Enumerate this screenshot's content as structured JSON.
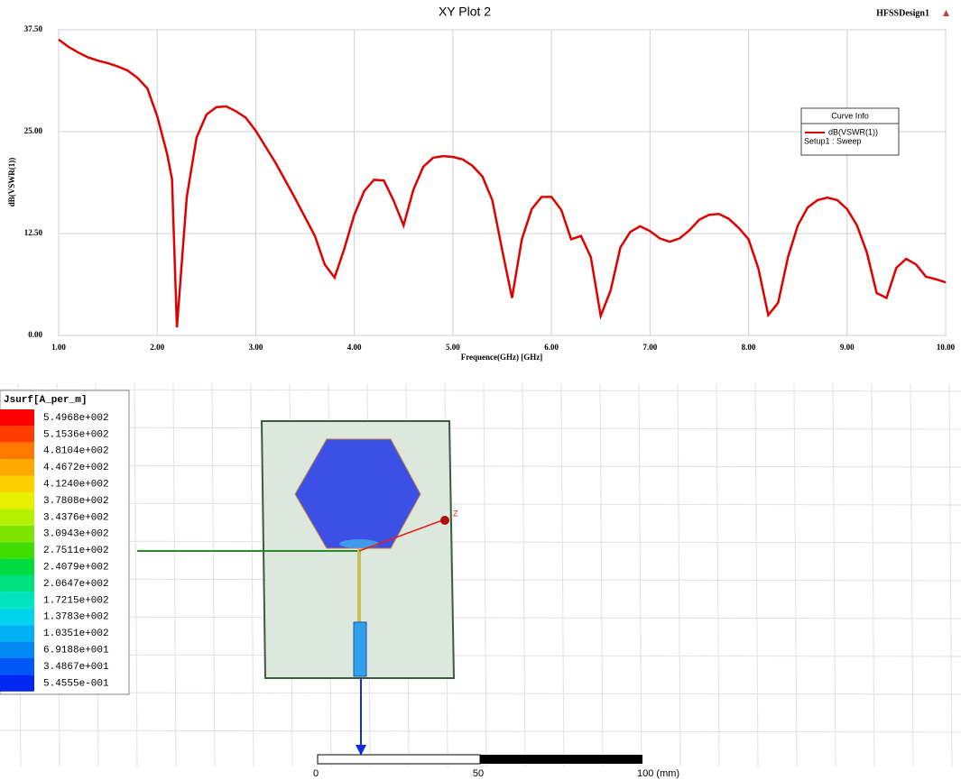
{
  "chart_data": {
    "type": "line",
    "title": "XY Plot 2",
    "design": "HFSSDesign1",
    "x_label": "Frequence(GHz) [GHz]",
    "y_label": "dB(VSWR(1))",
    "xlim": [
      1,
      10
    ],
    "ylim": [
      0,
      37.5
    ],
    "grid": true,
    "xticks": [
      {
        "value": 1,
        "label": "1.00"
      },
      {
        "value": 2,
        "label": "2.00"
      },
      {
        "value": 3,
        "label": "3.00"
      },
      {
        "value": 4,
        "label": "4.00"
      },
      {
        "value": 5,
        "label": "5.00"
      },
      {
        "value": 6,
        "label": "6.00"
      },
      {
        "value": 7,
        "label": "7.00"
      },
      {
        "value": 8,
        "label": "8.00"
      },
      {
        "value": 9,
        "label": "9.00"
      },
      {
        "value": 10,
        "label": "10.00"
      }
    ],
    "yticks": [
      {
        "value": 0,
        "label": "0.00"
      },
      {
        "value": 12.5,
        "label": "12.50"
      },
      {
        "value": 25,
        "label": "25.00"
      },
      {
        "value": 37.5,
        "label": "37.50"
      }
    ],
    "legend_title": "Curve Info",
    "legend_position": "upper right",
    "x": [
      1.0,
      1.1,
      1.2,
      1.3,
      1.4,
      1.5,
      1.6,
      1.7,
      1.8,
      1.9,
      2.0,
      2.1,
      2.15,
      2.2,
      2.3,
      2.4,
      2.5,
      2.6,
      2.7,
      2.8,
      2.9,
      3.0,
      3.2,
      3.4,
      3.6,
      3.7,
      3.8,
      3.9,
      4.0,
      4.1,
      4.2,
      4.3,
      4.4,
      4.5,
      4.6,
      4.7,
      4.8,
      4.9,
      5.0,
      5.1,
      5.2,
      5.3,
      5.4,
      5.5,
      5.6,
      5.7,
      5.8,
      5.9,
      6.0,
      6.1,
      6.2,
      6.3,
      6.4,
      6.5,
      6.6,
      6.7,
      6.8,
      6.9,
      7.0,
      7.1,
      7.2,
      7.3,
      7.4,
      7.5,
      7.6,
      7.7,
      7.8,
      7.9,
      8.0,
      8.1,
      8.2,
      8.3,
      8.4,
      8.5,
      8.6,
      8.7,
      8.8,
      8.9,
      9.0,
      9.1,
      9.2,
      9.3,
      9.4,
      9.5,
      9.6,
      9.7,
      9.8,
      9.9,
      10.0
    ],
    "series": [
      {
        "name": "dB(VSWR(1))",
        "setup": "Setup1 : Sweep",
        "color": "#e00000",
        "values": [
          36.3,
          35.4,
          34.7,
          34.1,
          33.7,
          33.4,
          33.0,
          32.5,
          31.6,
          30.3,
          26.9,
          22.3,
          19.2,
          1.0,
          17.0,
          24.3,
          27.1,
          28.0,
          28.1,
          27.5,
          26.7,
          25.1,
          21.2,
          16.8,
          12.2,
          8.7,
          7.1,
          10.7,
          14.8,
          17.7,
          19.1,
          19.0,
          16.5,
          13.5,
          17.9,
          20.7,
          21.8,
          22.0,
          21.9,
          21.6,
          20.8,
          19.5,
          16.6,
          10.5,
          4.6,
          11.8,
          15.5,
          17.0,
          17.0,
          15.4,
          11.8,
          12.2,
          9.6,
          2.4,
          5.5,
          10.8,
          12.7,
          13.4,
          12.8,
          11.9,
          11.5,
          11.9,
          12.9,
          14.2,
          14.8,
          14.9,
          14.3,
          13.2,
          11.8,
          8.2,
          2.5,
          4.0,
          9.6,
          13.5,
          15.7,
          16.6,
          16.9,
          16.6,
          15.5,
          13.5,
          10.2,
          5.2,
          4.6,
          8.3,
          9.4,
          8.7,
          7.2,
          6.9,
          6.5
        ]
      }
    ]
  },
  "field_plot": {
    "legend_title": "Jsurf[A_per_m]",
    "legend_labels": [
      "5.4968e+002",
      "5.1536e+002",
      "4.8104e+002",
      "4.4672e+002",
      "4.1240e+002",
      "3.7808e+002",
      "3.4376e+002",
      "3.0943e+002",
      "2.7511e+002",
      "2.4079e+002",
      "2.0647e+002",
      "1.7215e+002",
      "1.3783e+002",
      "1.0351e+002",
      "6.9188e+001",
      "3.4867e+001",
      "5.4555e-001"
    ],
    "axis_label": "Z",
    "scale_labels": [
      "0",
      "50",
      "100 (mm)"
    ]
  }
}
